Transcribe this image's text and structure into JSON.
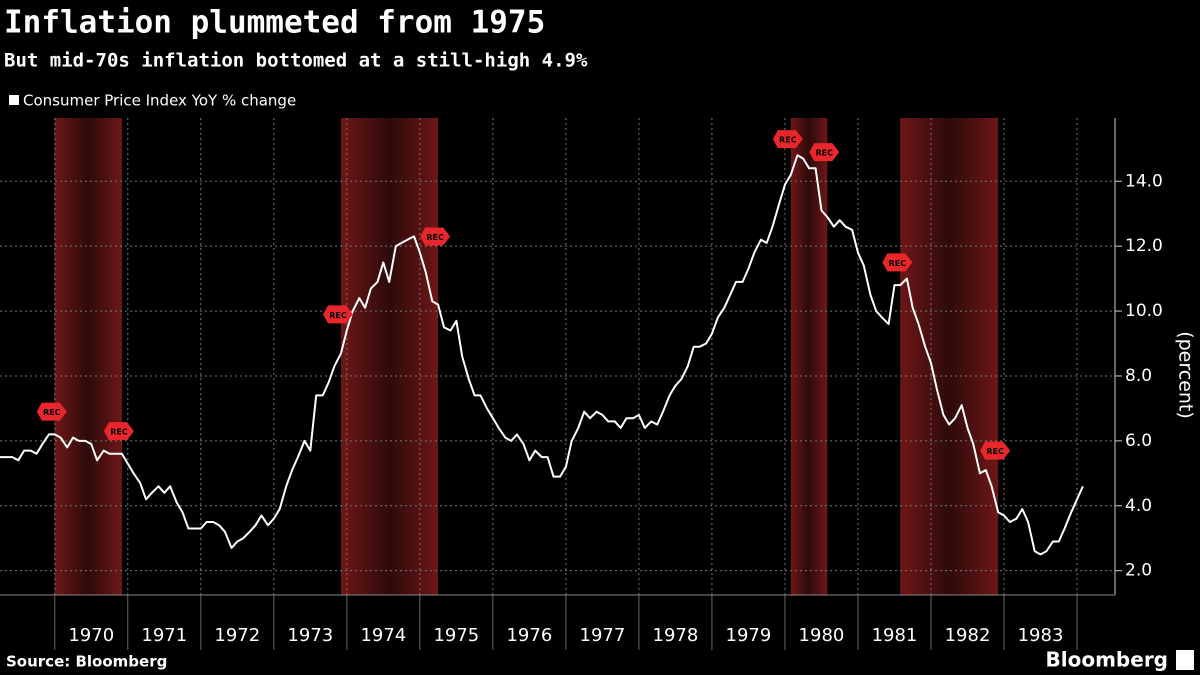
{
  "chart_data": {
    "type": "line",
    "title": "Inflation plummeted from 1975",
    "subtitle": "But mid-70s inflation bottomed at a still-high 4.9%",
    "y_axis_label": "(percent)",
    "source": "Source: Bloomberg",
    "logo": "Bloomberg",
    "xlim": [
      1969.25,
      1984.52
    ],
    "ylim": [
      1.25,
      15.95
    ],
    "yticks": [
      {
        "value": 2,
        "label": "2.0"
      },
      {
        "value": 4,
        "label": "4.0"
      },
      {
        "value": 6,
        "label": "6.0"
      },
      {
        "value": 8,
        "label": "8.0"
      },
      {
        "value": 10,
        "label": "10.0"
      },
      {
        "value": 12,
        "label": "12.0"
      },
      {
        "value": 14,
        "label": "14.0"
      }
    ],
    "xgrid": [
      1970,
      1971,
      1972,
      1973,
      1974,
      1975,
      1976,
      1977,
      1978,
      1979,
      1980,
      1981,
      1982,
      1983,
      1984
    ],
    "xticks": [
      {
        "value": 1970.5,
        "label": "1970"
      },
      {
        "value": 1971.5,
        "label": "1971"
      },
      {
        "value": 1972.5,
        "label": "1972"
      },
      {
        "value": 1973.5,
        "label": "1973"
      },
      {
        "value": 1974.5,
        "label": "1974"
      },
      {
        "value": 1975.5,
        "label": "1975"
      },
      {
        "value": 1976.5,
        "label": "1976"
      },
      {
        "value": 1977.5,
        "label": "1977"
      },
      {
        "value": 1978.5,
        "label": "1978"
      },
      {
        "value": 1979.5,
        "label": "1979"
      },
      {
        "value": 1980.5,
        "label": "1980"
      },
      {
        "value": 1981.5,
        "label": "1981"
      },
      {
        "value": 1982.5,
        "label": "1982"
      },
      {
        "value": 1983.5,
        "label": "1983"
      }
    ],
    "grid": true,
    "recessions": [
      [
        1970.0,
        1970.92
      ],
      [
        1973.92,
        1975.25
      ],
      [
        1980.08,
        1980.58
      ],
      [
        1981.58,
        1982.92
      ]
    ],
    "annotations": [
      {
        "text": "REC",
        "x": 1970.0,
        "y": 6.9
      },
      {
        "text": "REC",
        "x": 1970.92,
        "y": 6.3
      },
      {
        "text": "REC",
        "x": 1973.92,
        "y": 9.9
      },
      {
        "text": "REC",
        "x": 1975.25,
        "y": 12.3
      },
      {
        "text": "REC",
        "x": 1980.08,
        "y": 15.3
      },
      {
        "text": "REC",
        "x": 1980.58,
        "y": 14.9
      },
      {
        "text": "REC",
        "x": 1981.58,
        "y": 11.5
      },
      {
        "text": "REC",
        "x": 1982.92,
        "y": 5.7
      }
    ],
    "x": [
      1969.25,
      1969.33,
      1969.42,
      1969.5,
      1969.58,
      1969.67,
      1969.75,
      1969.83,
      1969.92,
      1970.0,
      1970.08,
      1970.17,
      1970.25,
      1970.33,
      1970.42,
      1970.5,
      1970.58,
      1970.67,
      1970.75,
      1970.83,
      1970.92,
      1971.0,
      1971.08,
      1971.17,
      1971.25,
      1971.33,
      1971.42,
      1971.5,
      1971.58,
      1971.67,
      1971.75,
      1971.83,
      1971.92,
      1972.0,
      1972.08,
      1972.17,
      1972.25,
      1972.33,
      1972.42,
      1972.5,
      1972.58,
      1972.67,
      1972.75,
      1972.83,
      1972.92,
      1973.0,
      1973.08,
      1973.17,
      1973.25,
      1973.33,
      1973.42,
      1973.5,
      1973.58,
      1973.67,
      1973.75,
      1973.83,
      1973.92,
      1974.0,
      1974.08,
      1974.17,
      1974.25,
      1974.33,
      1974.42,
      1974.5,
      1974.58,
      1974.67,
      1974.75,
      1974.83,
      1974.92,
      1975.0,
      1975.08,
      1975.17,
      1975.25,
      1975.33,
      1975.42,
      1975.5,
      1975.58,
      1975.67,
      1975.75,
      1975.83,
      1975.92,
      1976.0,
      1976.08,
      1976.17,
      1976.25,
      1976.33,
      1976.42,
      1976.5,
      1976.58,
      1976.67,
      1976.75,
      1976.83,
      1976.92,
      1977.0,
      1977.08,
      1977.17,
      1977.25,
      1977.33,
      1977.42,
      1977.5,
      1977.58,
      1977.67,
      1977.75,
      1977.83,
      1977.92,
      1978.0,
      1978.08,
      1978.17,
      1978.25,
      1978.33,
      1978.42,
      1978.5,
      1978.58,
      1978.67,
      1978.75,
      1978.83,
      1978.92,
      1979.0,
      1979.08,
      1979.17,
      1979.25,
      1979.33,
      1979.42,
      1979.5,
      1979.58,
      1979.67,
      1979.75,
      1979.83,
      1979.92,
      1980.0,
      1980.08,
      1980.17,
      1980.25,
      1980.33,
      1980.42,
      1980.5,
      1980.58,
      1980.67,
      1980.75,
      1980.83,
      1980.92,
      1981.0,
      1981.08,
      1981.17,
      1981.25,
      1981.33,
      1981.42,
      1981.5,
      1981.58,
      1981.67,
      1981.75,
      1981.83,
      1981.92,
      1982.0,
      1982.08,
      1982.17,
      1982.25,
      1982.33,
      1982.42,
      1982.5,
      1982.58,
      1982.67,
      1982.75,
      1982.83,
      1982.92,
      1983.0,
      1983.08,
      1983.17,
      1983.25,
      1983.33,
      1983.42,
      1983.5,
      1983.58,
      1983.67,
      1983.75,
      1983.83,
      1983.92,
      1984.0,
      1984.08
    ],
    "series": [
      {
        "name": "Consumer Price Index YoY % change",
        "color": "#ffffff",
        "values": [
          5.5,
          5.5,
          5.5,
          5.4,
          5.7,
          5.7,
          5.6,
          5.9,
          6.2,
          6.2,
          6.1,
          5.8,
          6.1,
          6.0,
          6.0,
          5.9,
          5.4,
          5.7,
          5.6,
          5.6,
          5.6,
          5.3,
          5.0,
          4.7,
          4.2,
          4.4,
          4.6,
          4.4,
          4.6,
          4.1,
          3.8,
          3.3,
          3.3,
          3.3,
          3.5,
          3.5,
          3.4,
          3.2,
          2.7,
          2.9,
          3.0,
          3.2,
          3.4,
          3.7,
          3.4,
          3.6,
          3.9,
          4.6,
          5.1,
          5.5,
          6.0,
          5.7,
          7.4,
          7.4,
          7.8,
          8.3,
          8.7,
          9.4,
          10.0,
          10.4,
          10.1,
          10.7,
          10.9,
          11.5,
          10.9,
          12.0,
          12.1,
          12.2,
          12.3,
          11.8,
          11.2,
          10.3,
          10.2,
          9.5,
          9.4,
          9.7,
          8.6,
          7.9,
          7.4,
          7.4,
          7.0,
          6.7,
          6.4,
          6.1,
          6.0,
          6.2,
          5.9,
          5.4,
          5.7,
          5.5,
          5.5,
          4.9,
          4.9,
          5.2,
          6.0,
          6.4,
          6.9,
          6.7,
          6.9,
          6.8,
          6.6,
          6.6,
          6.4,
          6.7,
          6.7,
          6.8,
          6.4,
          6.6,
          6.5,
          6.9,
          7.4,
          7.7,
          7.9,
          8.3,
          8.9,
          8.9,
          9.0,
          9.3,
          9.8,
          10.1,
          10.5,
          10.9,
          10.9,
          11.3,
          11.8,
          12.2,
          12.1,
          12.6,
          13.3,
          13.9,
          14.2,
          14.8,
          14.7,
          14.4,
          14.4,
          13.1,
          12.9,
          12.6,
          12.8,
          12.6,
          12.5,
          11.8,
          11.4,
          10.5,
          10.0,
          9.8,
          9.6,
          10.8,
          10.8,
          11.0,
          10.1,
          9.6,
          8.9,
          8.4,
          7.6,
          6.8,
          6.5,
          6.7,
          7.1,
          6.4,
          5.9,
          5.0,
          5.1,
          4.6,
          3.8,
          3.7,
          3.5,
          3.6,
          3.9,
          3.5,
          2.6,
          2.5,
          2.6,
          2.9,
          2.9,
          3.3,
          3.8,
          4.2,
          4.6
        ]
      }
    ]
  }
}
